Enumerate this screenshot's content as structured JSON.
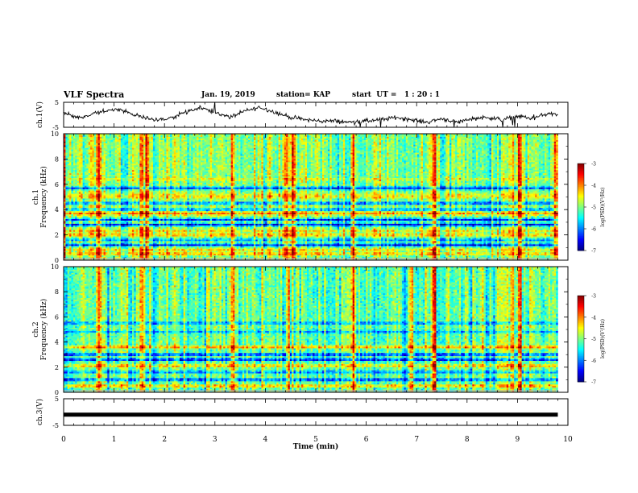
{
  "header": {
    "title": "VLF Spectra",
    "date": "Jan. 19, 2019",
    "station": "station= KAP",
    "start": "start  UT =   1 : 20 : 1"
  },
  "chart_data": [
    {
      "type": "line",
      "panel": "ch1-waveform",
      "ylabel": "ch.1(V)",
      "yticks": [
        "5",
        "-5"
      ],
      "ylim": [
        -5,
        5
      ],
      "xlim": [
        0,
        10
      ],
      "x_end": 9.8,
      "color": "#000000",
      "x": [
        0,
        0.3,
        0.6,
        0.9,
        1.2,
        1.5,
        1.8,
        2.1,
        2.4,
        2.7,
        3.0,
        3.3,
        3.6,
        3.9,
        4.2,
        4.5,
        4.8,
        5.1,
        5.4,
        5.7,
        6.0,
        6.3,
        6.6,
        6.9,
        7.2,
        7.5,
        7.8,
        8.1,
        8.4,
        8.7,
        9.0,
        9.3,
        9.6,
        9.8
      ],
      "y": [
        1.0,
        -1.5,
        0.5,
        2.0,
        1.5,
        -0.5,
        -2.0,
        -1.5,
        1.0,
        3.0,
        1.0,
        -1.0,
        1.5,
        3.0,
        1.0,
        -1.0,
        -2.0,
        -2.5,
        -2.5,
        -3.0,
        -2.5,
        -2.0,
        -1.0,
        -2.0,
        -3.0,
        -1.5,
        -3.0,
        -1.5,
        -1.0,
        -2.0,
        -0.5,
        -1.5,
        0.5,
        0.0
      ]
    },
    {
      "type": "heatmap",
      "panel": "ch1-spectrogram",
      "ylabel": "ch.1\nFrequency (kHz)",
      "yticks": [
        "0",
        "2",
        "4",
        "6",
        "8",
        "10"
      ],
      "ylim": [
        0,
        10
      ],
      "xlim": [
        0,
        10
      ],
      "x_end": 9.8,
      "background_level": -5.0,
      "bursts_min": [
        0.0,
        0.7,
        1.55,
        1.65,
        3.35,
        4.4,
        4.55,
        5.75,
        7.35,
        8.9,
        9.05,
        9.75
      ],
      "bands": [
        {
          "f": 0.5,
          "level": -4.1
        },
        {
          "f": 0.8,
          "level": -4.4
        },
        {
          "f": 1.2,
          "level": -6.5
        },
        {
          "f": 1.6,
          "level": -6.0
        },
        {
          "f": 2.0,
          "level": -4.2
        },
        {
          "f": 2.3,
          "level": -4.4
        },
        {
          "f": 2.8,
          "level": -6.6
        },
        {
          "f": 3.2,
          "level": -6.4
        },
        {
          "f": 3.7,
          "level": -4.0
        },
        {
          "f": 4.0,
          "level": -6.0
        },
        {
          "f": 4.5,
          "level": -6.2
        },
        {
          "f": 5.0,
          "level": -4.4
        },
        {
          "f": 5.2,
          "level": -4.6
        },
        {
          "f": 5.7,
          "level": -6.4
        },
        {
          "f": 6.4,
          "level": -4.6
        }
      ],
      "colorbar": {
        "title": "log(PSD)(V²/Hz)",
        "ticks": [
          "-3",
          "-4",
          "-5",
          "-6",
          "-7"
        ],
        "range": [
          -7,
          -3
        ]
      }
    },
    {
      "type": "heatmap",
      "panel": "ch2-spectrogram",
      "ylabel": "ch.2\nFrequency (kHz)",
      "yticks": [
        "0",
        "2",
        "4",
        "6",
        "8",
        "10"
      ],
      "ylim": [
        0,
        10
      ],
      "xlim": [
        0,
        10
      ],
      "x_end": 9.8,
      "background_level": -5.1,
      "bursts_min": [
        0.7,
        1.55,
        3.35,
        4.45,
        5.75,
        6.9,
        7.35,
        8.9,
        9.05
      ],
      "bands": [
        {
          "f": 0.5,
          "level": -4.1
        },
        {
          "f": 1.0,
          "level": -6.4
        },
        {
          "f": 1.6,
          "level": -6.0
        },
        {
          "f": 2.1,
          "level": -4.2
        },
        {
          "f": 2.6,
          "level": -6.6
        },
        {
          "f": 3.0,
          "level": -6.5
        },
        {
          "f": 3.6,
          "level": -4.0
        },
        {
          "f": 4.8,
          "level": -5.8
        },
        {
          "f": 5.5,
          "level": -6.0
        }
      ],
      "colorbar": {
        "title": "log(PSD)(V²/Hz)",
        "ticks": [
          "-3",
          "-4",
          "-5",
          "-6",
          "-7"
        ],
        "range": [
          -7,
          -3
        ]
      }
    },
    {
      "type": "line",
      "panel": "ch3-waveform",
      "ylabel": "ch.3(V)",
      "yticks": [
        "5",
        "-5"
      ],
      "ylim": [
        -5,
        5
      ],
      "xlim": [
        0,
        10
      ],
      "x_end": 9.8,
      "color": "#000000",
      "x": [
        0,
        9.8
      ],
      "y": [
        -1.0,
        -1.0
      ]
    }
  ],
  "x_axis": {
    "label": "Time  (min)",
    "ticks": [
      "0",
      "1",
      "2",
      "3",
      "4",
      "5",
      "6",
      "7",
      "8",
      "9",
      "10"
    ],
    "range": [
      0,
      10
    ]
  }
}
